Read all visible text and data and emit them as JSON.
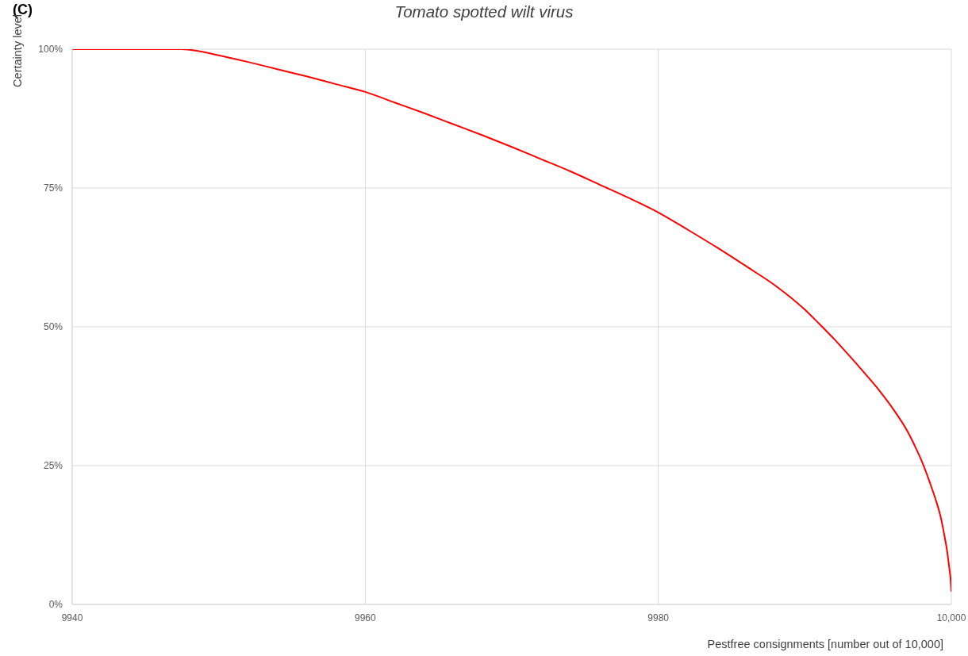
{
  "chart_data": {
    "type": "line",
    "title": "Tomato spotted wilt virus",
    "xlabel": "Pestfree consignments [number out of 10,000]",
    "ylabel": "Certainty level",
    "annotations": [
      "(C)"
    ],
    "x": [
      9940,
      9947.5,
      9948,
      9950,
      9952,
      9954,
      9956,
      9958,
      9960,
      9962,
      9964,
      9966,
      9968,
      9970,
      9972,
      9974,
      9976,
      9978,
      9980,
      9982,
      9984,
      9986,
      9988,
      9990,
      9991,
      9992,
      9993,
      9994,
      9995,
      9996,
      9997,
      9997.5,
      9998,
      9998.5,
      9999,
      9999.25,
      9999.5,
      9999.7,
      9999.85,
      9999.95,
      10000
    ],
    "values": [
      100,
      100,
      99.9,
      98.9,
      97.7,
      96.4,
      95.1,
      93.7,
      92.3,
      90.4,
      88.5,
      86.5,
      84.5,
      82.4,
      80.2,
      78.0,
      75.6,
      73.2,
      70.6,
      67.5,
      64.3,
      60.9,
      57.4,
      53.1,
      50.5,
      47.8,
      44.9,
      41.9,
      38.8,
      35.3,
      31.2,
      28.6,
      25.7,
      22.2,
      18.3,
      16.0,
      12.8,
      9.8,
      6.8,
      4.5,
      2.4
    ],
    "color": "#ff0000",
    "xlim": [
      9940,
      10000
    ],
    "xticks": [
      9940,
      9960,
      9980,
      {
        "value": 10000,
        "label": "10,000"
      }
    ],
    "ylim": [
      0,
      100
    ],
    "yticks": [
      {
        "value": 0,
        "label": "0%"
      },
      {
        "value": 25,
        "label": "25%"
      },
      {
        "value": 50,
        "label": "50%"
      },
      {
        "value": 75,
        "label": "75%"
      },
      {
        "value": 100,
        "label": "100%"
      }
    ],
    "grid": true,
    "marker": "none"
  }
}
